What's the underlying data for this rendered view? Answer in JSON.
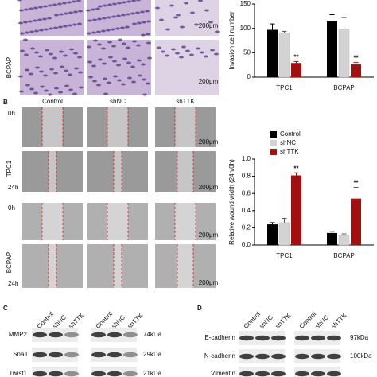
{
  "figure": {
    "panel_labels": [
      "B",
      "C",
      "D"
    ],
    "panel_a": {
      "row_label": "BCPAP",
      "scale_bars": [
        "200μm",
        "200μm"
      ]
    },
    "panel_b": {
      "columns": [
        "Control",
        "shNC",
        "shTTK"
      ],
      "time_labels": [
        "0h",
        "24h",
        "0h",
        "24h"
      ],
      "row_labels": [
        "TPC1",
        "BCPAP"
      ],
      "scale_bars": [
        "200μm",
        "200μm",
        "200μm",
        "200μm"
      ]
    },
    "panel_c": {
      "lanes": [
        "Control",
        "shNC",
        "shTTK",
        "Control",
        "shNC",
        "shTTK"
      ],
      "proteins": [
        "MMP2",
        "Snail",
        "Twist1"
      ],
      "sizes": [
        "74kDa",
        "29kDa",
        "21kDa"
      ]
    },
    "panel_d": {
      "lanes": [
        "Control",
        "shNC",
        "shTTK",
        "Control",
        "shNC",
        "shTTK"
      ],
      "proteins": [
        "E-cadherin",
        "N-cadherin",
        "Vimentin"
      ],
      "sizes": [
        "97kDa",
        "100kDa"
      ]
    }
  },
  "chart_data": [
    {
      "type": "bar",
      "y_label": "Invasion cell number",
      "categories": [
        "TPC1",
        "BCPAP"
      ],
      "series": [
        {
          "name": "Control",
          "color": "#000000",
          "values": [
            97,
            115
          ],
          "errors": [
            12,
            13
          ]
        },
        {
          "name": "shNC",
          "color": "#d3d3d3",
          "values": [
            91,
            99
          ],
          "errors": [
            3,
            23
          ]
        },
        {
          "name": "shTTK",
          "color": "#a01010",
          "values": [
            29,
            26
          ],
          "errors": [
            3,
            4
          ]
        }
      ],
      "annotations": [
        "**",
        "**"
      ],
      "ylim": [
        0,
        150
      ],
      "yticks": [
        0,
        50,
        100,
        150
      ]
    },
    {
      "type": "bar",
      "y_label": "Relative wound width (24h/0h)",
      "categories": [
        "TPC1",
        "BCPAP"
      ],
      "series": [
        {
          "name": "Control",
          "color": "#000000",
          "values": [
            0.24,
            0.14
          ],
          "errors": [
            0.02,
            0.02
          ]
        },
        {
          "name": "shNC",
          "color": "#d3d3d3",
          "values": [
            0.26,
            0.11
          ],
          "errors": [
            0.05,
            0.02
          ]
        },
        {
          "name": "shTTK",
          "color": "#a01010",
          "values": [
            0.81,
            0.54
          ],
          "errors": [
            0.03,
            0.13
          ]
        }
      ],
      "annotations": [
        "**",
        "**"
      ],
      "ylim": [
        0,
        1
      ],
      "yticks": [
        {
          "value": 0,
          "label": "0.0"
        },
        0.2,
        0.4,
        0.6,
        0.8,
        {
          "value": 1,
          "label": "1.0"
        }
      ],
      "legend": "top-left"
    }
  ]
}
